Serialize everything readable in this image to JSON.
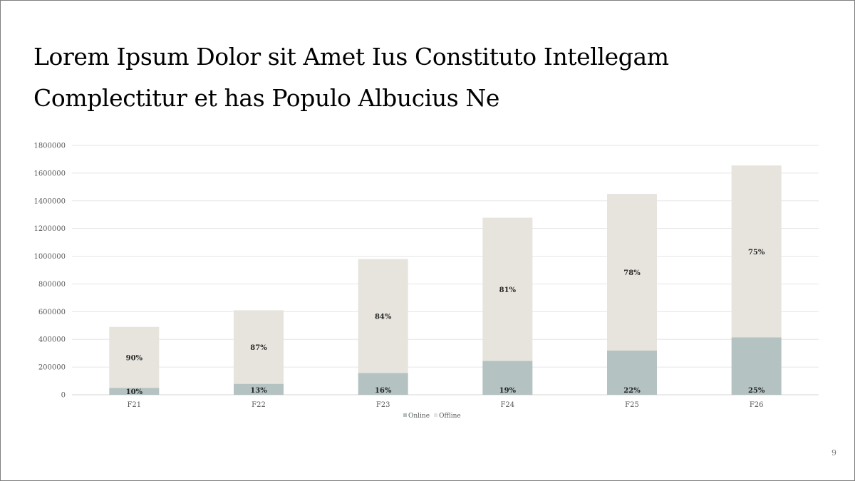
{
  "slide": {
    "title_line1": "Lorem Ipsum Dolor sit Amet Ius Constituto Intellegam",
    "title_line2": "Complectitur et has Populo Albucius Ne",
    "page_number": "9"
  },
  "chart_data": {
    "type": "bar",
    "stacked": true,
    "title": "",
    "xlabel": "",
    "ylabel": "",
    "ylim": [
      0,
      1800000
    ],
    "yticks": [
      0,
      200000,
      400000,
      600000,
      800000,
      1000000,
      1200000,
      1400000,
      1600000,
      1800000
    ],
    "categories": [
      "F21",
      "F22",
      "F23",
      "F24",
      "F25",
      "F26"
    ],
    "series": [
      {
        "name": "Online",
        "color": "#b4c2c2",
        "values": [
          49000,
          79000,
          157000,
          244000,
          320000,
          414000
        ],
        "labels": [
          "10%",
          "13%",
          "16%",
          "19%",
          "22%",
          "25%"
        ]
      },
      {
        "name": "Offline",
        "color": "#e7e4dd",
        "values": [
          441000,
          531000,
          823000,
          1034000,
          1130000,
          1241000
        ],
        "labels": [
          "90%",
          "87%",
          "84%",
          "81%",
          "78%",
          "75%"
        ]
      }
    ],
    "grid": true,
    "legend": "bottom"
  }
}
